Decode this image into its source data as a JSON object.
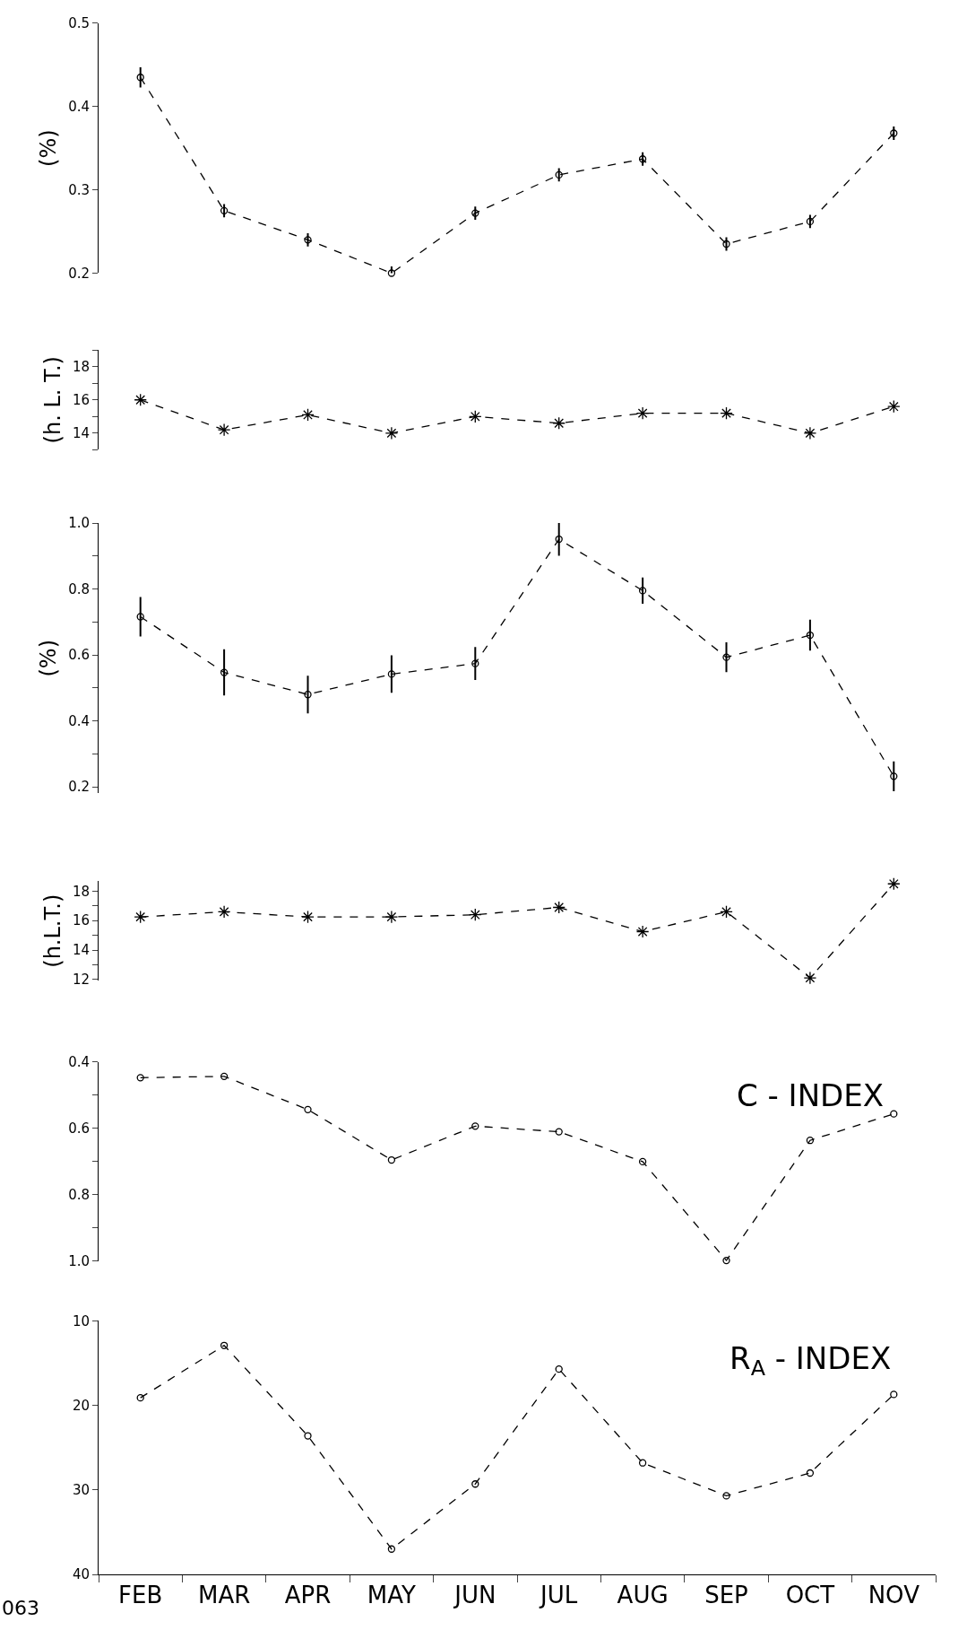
{
  "chart_data": [
    {
      "type": "line",
      "ylabel": "(%)",
      "categories": [
        "FEB",
        "MAR",
        "APR",
        "MAY",
        "JUN",
        "JUL",
        "AUG",
        "SEP",
        "OCT",
        "NOV"
      ],
      "color": "#000000",
      "marker": "circle",
      "line_style": "dashed",
      "tick_labels": "y",
      "values": [
        0.435,
        0.275,
        0.24,
        0.2,
        0.272,
        0.318,
        0.337,
        0.235,
        0.262,
        0.368
      ],
      "errors": [
        0.012,
        0.008,
        0.008,
        0.008,
        0.008,
        0.008,
        0.008,
        0.008,
        0.008,
        0.008
      ],
      "ylim": [
        0.2,
        0.5
      ],
      "yticks": [
        0.2,
        0.3,
        0.4,
        0.5
      ]
    },
    {
      "type": "line",
      "ylabel": "(h. L. T.)",
      "categories": [
        "FEB",
        "MAR",
        "APR",
        "MAY",
        "JUN",
        "JUL",
        "AUG",
        "SEP",
        "OCT",
        "NOV"
      ],
      "color": "#000000",
      "marker": "cross",
      "line_style": "dashed",
      "tick_labels": "y",
      "values": [
        16.0,
        14.2,
        15.1,
        14.0,
        15.0,
        14.6,
        15.2,
        15.2,
        14.0,
        15.6
      ],
      "ylim": [
        13,
        19
      ],
      "yticks": [
        {
          "value": 13,
          "label": null
        },
        14,
        {
          "value": 15,
          "label": null
        },
        16,
        {
          "value": 17,
          "label": null
        },
        18,
        {
          "value": 19,
          "label": null
        }
      ]
    },
    {
      "type": "line",
      "ylabel": "(%)",
      "categories": [
        "FEB",
        "MAR",
        "APR",
        "MAY",
        "JUN",
        "JUL",
        "AUG",
        "SEP",
        "OCT",
        "NOV"
      ],
      "color": "#000000",
      "marker": "circle",
      "line_style": "dashed",
      "tick_labels": "y",
      "values": [
        0.716,
        0.547,
        0.48,
        0.542,
        0.574,
        0.951,
        0.795,
        0.593,
        0.66,
        0.232
      ],
      "errors": [
        0.06,
        0.07,
        0.057,
        0.057,
        0.05,
        0.05,
        0.04,
        0.045,
        0.047,
        0.045
      ],
      "ylim": [
        0.18,
        1.0
      ],
      "yticks": [
        0.2,
        {
          "value": 0.3,
          "label": null
        },
        0.4,
        {
          "value": 0.5,
          "label": null
        },
        0.6,
        {
          "value": 0.7,
          "label": null
        },
        0.8,
        {
          "value": 0.9,
          "label": null
        },
        {
          "value": 1.0,
          "label": "1.0"
        }
      ]
    },
    {
      "type": "line",
      "ylabel": "(h.L.T.)",
      "categories": [
        "FEB",
        "MAR",
        "APR",
        "MAY",
        "JUN",
        "JUL",
        "AUG",
        "SEP",
        "OCT",
        "NOV"
      ],
      "color": "#000000",
      "marker": "cross",
      "line_style": "dashed",
      "tick_labels": "y",
      "values": [
        16.25,
        16.6,
        16.25,
        16.25,
        16.4,
        16.9,
        15.25,
        16.6,
        12.1,
        18.5
      ],
      "ylim": [
        11.9,
        18.7
      ],
      "yticks": [
        12,
        {
          "value": 13,
          "label": null
        },
        14,
        {
          "value": 15,
          "label": null
        },
        16,
        {
          "value": 17,
          "label": null
        },
        18
      ]
    },
    {
      "type": "line",
      "categories": [
        "FEB",
        "MAR",
        "APR",
        "MAY",
        "JUN",
        "JUL",
        "AUG",
        "SEP",
        "OCT",
        "NOV"
      ],
      "color": "#000000",
      "marker": "circle",
      "line_style": "dashed",
      "tick_labels": "y",
      "values": [
        0.447,
        0.443,
        0.543,
        0.695,
        0.593,
        0.61,
        0.7,
        0.998,
        0.636,
        0.556
      ],
      "ylim": [
        1.0,
        0.4
      ],
      "yticks": [
        0.4,
        {
          "value": 0.5,
          "label": null
        },
        0.6,
        {
          "value": 0.7,
          "label": null
        },
        0.8,
        {
          "value": 0.9,
          "label": null
        },
        {
          "value": 1.0,
          "label": "1.0"
        }
      ],
      "annotations": [
        "C - INDEX"
      ]
    },
    {
      "type": "line",
      "categories": [
        "FEB",
        "MAR",
        "APR",
        "MAY",
        "JUN",
        "JUL",
        "AUG",
        "SEP",
        "OCT",
        "NOV"
      ],
      "color": "#000000",
      "marker": "circle",
      "line_style": "dashed",
      "values": [
        19.1,
        12.9,
        23.6,
        37.0,
        29.3,
        15.7,
        26.8,
        30.7,
        28.0,
        18.7
      ],
      "ylim": [
        40,
        10
      ],
      "yticks": [
        10,
        20,
        30,
        40
      ],
      "annotations": [
        "R$_{A}$ - INDEX",
        "063"
      ]
    }
  ]
}
